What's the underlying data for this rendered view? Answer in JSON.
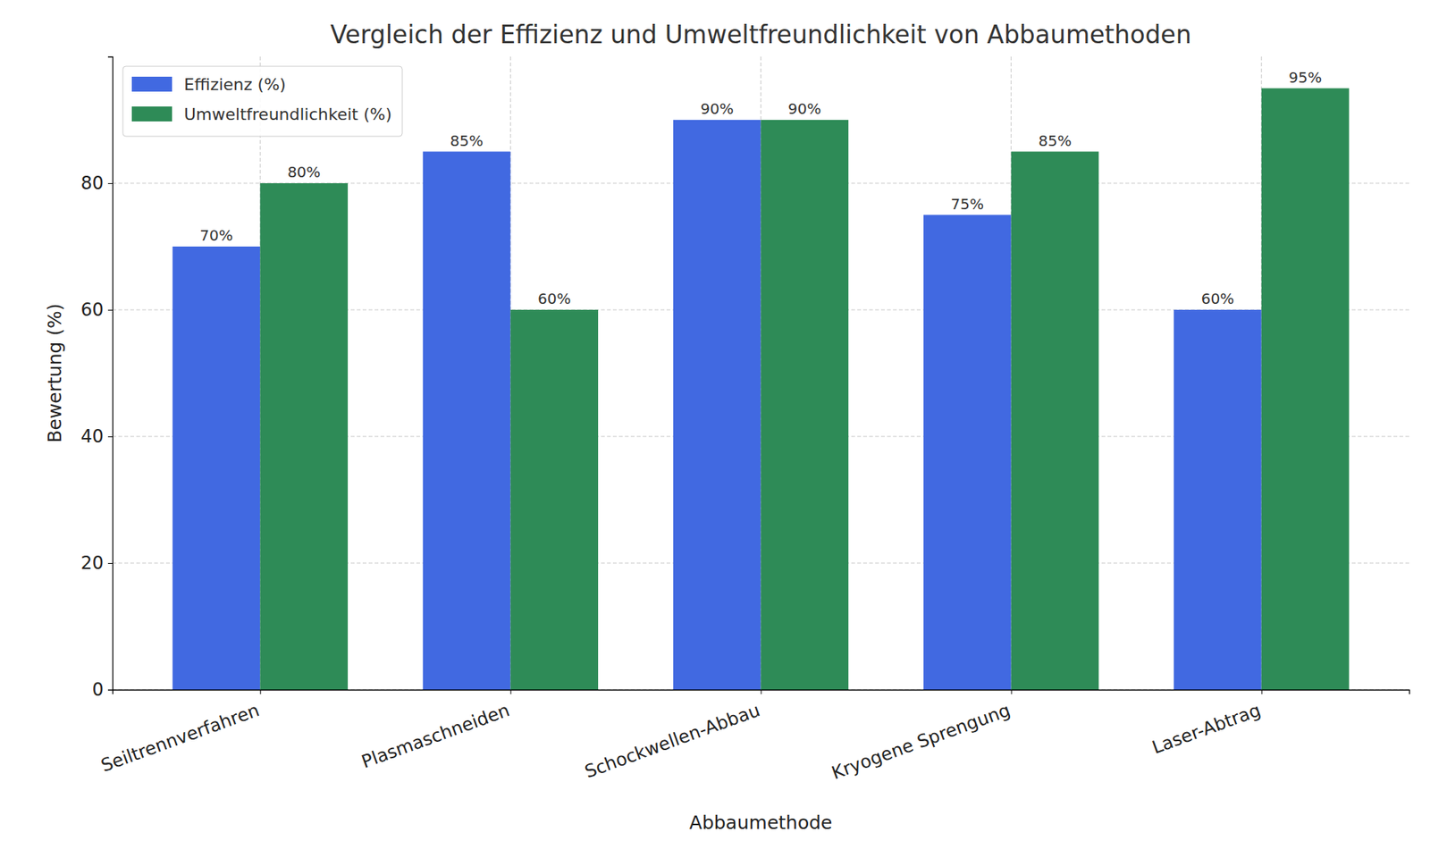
{
  "chart_data": {
    "type": "bar",
    "title": "Vergleich der Effizienz und Umweltfreundlichkeit von Abbaumethoden",
    "x_label": "Abbaumethode",
    "y_label": "Bewertung (%)",
    "categories": [
      "Seiltrennverfahren",
      "Plasmaschneiden",
      "Schockwellen-Abbau",
      "Kryogene Sprengung",
      "Laser-Abtrag"
    ],
    "series": [
      {
        "name": "Effizienz (%)",
        "color": "#4169e1",
        "values": [
          70,
          85,
          90,
          75,
          60
        ],
        "value_labels": [
          "70%",
          "85%",
          "90%",
          "75%",
          "60%"
        ]
      },
      {
        "name": "Umweltfreundlichkeit (%)",
        "color": "#2e8b57",
        "values": [
          80,
          60,
          90,
          85,
          95
        ],
        "value_labels": [
          "80%",
          "60%",
          "90%",
          "85%",
          "95%"
        ]
      }
    ],
    "ylim": [
      0,
      100
    ],
    "yticks": [
      0,
      20,
      40,
      60,
      80
    ],
    "grid": true,
    "legend": "upper left",
    "data_labels": true
  }
}
